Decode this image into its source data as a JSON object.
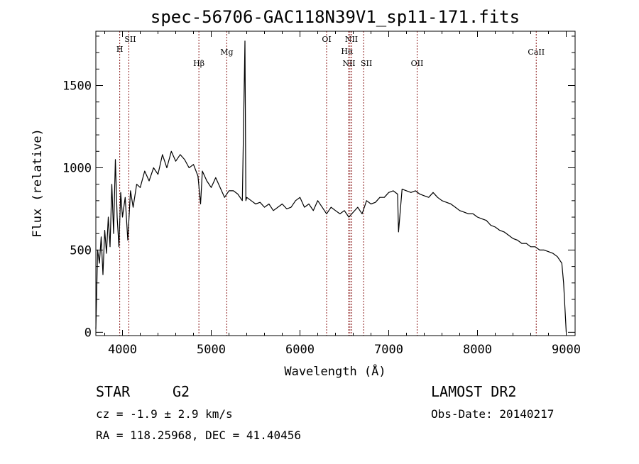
{
  "figure": {
    "title": "spec-56706-GAC118N39V1_sp11-171.fits"
  },
  "info": {
    "object_class": "STAR",
    "subclass": "G2",
    "redshift": "cz = -1.9 ± 2.9 km/s",
    "coords": "RA = 118.25968, DEC =  41.40456",
    "survey": "LAMOST DR2",
    "obs_date": "Obs-Date: 20140217"
  },
  "chart_data": {
    "type": "line",
    "title": "spec-56706-GAC118N39V1_sp11-171.fits",
    "xlabel": "Wavelength (Å)",
    "ylabel": "Flux (relative)",
    "xlim": [
      3700,
      9100
    ],
    "ylim": [
      -20,
      1830
    ],
    "x_ticks": [
      4000,
      5000,
      6000,
      7000,
      8000,
      9000
    ],
    "y_ticks": [
      0,
      500,
      1000,
      1500
    ],
    "grid": false,
    "line_color": "#000000",
    "marker_color": "#8b1a1a",
    "spectral_lines": [
      {
        "label": "H",
        "wavelength": 3969
      },
      {
        "label": "SII",
        "wavelength": 4072
      },
      {
        "label": "Hβ",
        "wavelength": 4861
      },
      {
        "label": "Mg",
        "wavelength": 5175
      },
      {
        "label": "OI",
        "wavelength": 6300
      },
      {
        "label": "NII",
        "wavelength": 6548
      },
      {
        "label": "Hα",
        "wavelength": 6563
      },
      {
        "label": "NII",
        "wavelength": 6584
      },
      {
        "label": "SII",
        "wavelength": 6717
      },
      {
        "label": "OII",
        "wavelength": 7320
      },
      {
        "label": "CaII",
        "wavelength": 8662
      }
    ],
    "series": [
      {
        "x": [
          3700,
          3720,
          3740,
          3760,
          3780,
          3800,
          3820,
          3840,
          3860,
          3880,
          3900,
          3920,
          3940,
          3960,
          3980,
          4000,
          4030,
          4060,
          4090,
          4120,
          4160,
          4200,
          4250,
          4300,
          4350,
          4400,
          4450,
          4500,
          4550,
          4600,
          4650,
          4700,
          4750,
          4800,
          4850,
          4880,
          4900,
          4950,
          5000,
          5050,
          5100,
          5150,
          5200,
          5250,
          5300,
          5350,
          5380,
          5390,
          5400,
          5450,
          5500,
          5550,
          5600,
          5650,
          5700,
          5750,
          5800,
          5850,
          5900,
          5950,
          6000,
          6050,
          6100,
          6150,
          6200,
          6250,
          6300,
          6350,
          6400,
          6450,
          6500,
          6550,
          6600,
          6650,
          6700,
          6750,
          6800,
          6850,
          6900,
          6950,
          7000,
          7050,
          7100,
          7110,
          7150,
          7200,
          7250,
          7300,
          7350,
          7400,
          7450,
          7500,
          7550,
          7600,
          7650,
          7700,
          7750,
          7800,
          7850,
          7900,
          7950,
          8000,
          8050,
          8100,
          8150,
          8200,
          8250,
          8300,
          8350,
          8400,
          8450,
          8500,
          8550,
          8600,
          8650,
          8700,
          8750,
          8800,
          8850,
          8900,
          8950,
          8970,
          8990,
          9000
        ],
        "y": [
          20,
          500,
          420,
          580,
          350,
          620,
          480,
          700,
          520,
          900,
          600,
          1050,
          700,
          520,
          850,
          700,
          820,
          560,
          860,
          760,
          900,
          880,
          980,
          920,
          1000,
          960,
          1080,
          1000,
          1100,
          1040,
          1080,
          1050,
          1000,
          1020,
          950,
          780,
          980,
          920,
          880,
          940,
          880,
          820,
          860,
          860,
          840,
          800,
          1770,
          800,
          820,
          800,
          780,
          790,
          760,
          780,
          740,
          760,
          780,
          750,
          760,
          800,
          820,
          760,
          780,
          740,
          800,
          760,
          720,
          760,
          740,
          720,
          740,
          700,
          730,
          760,
          720,
          800,
          780,
          790,
          820,
          820,
          850,
          860,
          840,
          610,
          870,
          860,
          850,
          860,
          840,
          830,
          820,
          850,
          820,
          800,
          790,
          780,
          760,
          740,
          730,
          720,
          720,
          700,
          690,
          680,
          650,
          640,
          620,
          610,
          590,
          570,
          560,
          540,
          540,
          520,
          520,
          500,
          500,
          490,
          480,
          460,
          420,
          300,
          100,
          0
        ]
      }
    ]
  }
}
